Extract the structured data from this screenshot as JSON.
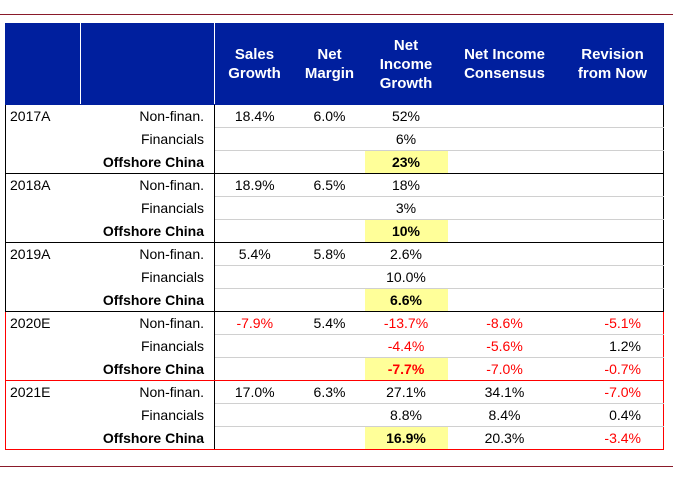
{
  "headers": [
    "",
    "",
    "Sales\nGrowth",
    "Net\nMargin",
    "Net\nIncome\nGrowth",
    "Net Income\nConsensus",
    "Revision\nfrom Now"
  ],
  "colors": {
    "header_bg": "#001f9e",
    "highlight": "#ffff99",
    "negative": "#ff0000"
  },
  "rows": [
    [
      "2017A",
      "Non-finan.",
      "18.4%",
      "6.0%",
      "52%",
      "",
      ""
    ],
    [
      "",
      "Financials",
      "",
      "",
      "6%",
      "",
      ""
    ],
    [
      "",
      "Offshore China",
      "",
      "",
      "23%",
      "",
      ""
    ],
    [
      "2018A",
      "Non-finan.",
      "18.9%",
      "6.5%",
      "18%",
      "",
      ""
    ],
    [
      "",
      "Financials",
      "",
      "",
      "3%",
      "",
      ""
    ],
    [
      "",
      "Offshore China",
      "",
      "",
      "10%",
      "",
      ""
    ],
    [
      "2019A",
      "Non-finan.",
      "5.4%",
      "5.8%",
      "2.6%",
      "",
      ""
    ],
    [
      "",
      "Financials",
      "",
      "",
      "10.0%",
      "",
      ""
    ],
    [
      "",
      "Offshore China",
      "",
      "",
      "6.6%",
      "",
      ""
    ],
    [
      "2020E",
      "Non-finan.",
      "-7.9%",
      "5.4%",
      "-13.7%",
      "-8.6%",
      "-5.1%"
    ],
    [
      "",
      "Financials",
      "",
      "",
      "-4.4%",
      "-5.6%",
      "1.2%"
    ],
    [
      "",
      "Offshore China",
      "",
      "",
      "-7.7%",
      "-7.0%",
      "-0.7%"
    ],
    [
      "2021E",
      "Non-finan.",
      "17.0%",
      "6.3%",
      "27.1%",
      "34.1%",
      "-7.0%"
    ],
    [
      "",
      "Financials",
      "",
      "",
      "8.8%",
      "8.4%",
      "0.4%"
    ],
    [
      "",
      "Offshore China",
      "",
      "",
      "16.9%",
      "20.3%",
      "-3.4%"
    ]
  ]
}
